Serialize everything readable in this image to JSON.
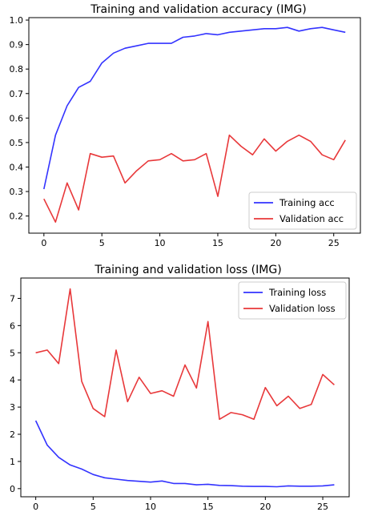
{
  "chart_data": [
    {
      "type": "line",
      "title": "Training and validation accuracy (IMG)",
      "xlabel": "",
      "ylabel": "",
      "x": [
        0,
        1,
        2,
        3,
        4,
        5,
        6,
        7,
        8,
        9,
        10,
        11,
        12,
        13,
        14,
        15,
        16,
        17,
        18,
        19,
        20,
        21,
        22,
        23,
        24,
        25,
        26
      ],
      "xlim": [
        -1.3,
        27.3
      ],
      "ylim": [
        0.13,
        1.01
      ],
      "xticks": [
        0,
        5,
        10,
        15,
        20,
        25
      ],
      "yticks": [
        0.2,
        0.3,
        0.4,
        0.5,
        0.6,
        0.7,
        0.8,
        0.9,
        1.0
      ],
      "ytick_labels": [
        "0.2",
        "0.3",
        "0.4",
        "0.5",
        "0.6",
        "0.7",
        "0.8",
        "0.9",
        "1.0"
      ],
      "grid": false,
      "legend_position": "lower-right",
      "series": [
        {
          "name": "Training acc",
          "color": "#3333ff",
          "values": [
            0.31,
            0.53,
            0.65,
            0.725,
            0.75,
            0.825,
            0.865,
            0.885,
            0.895,
            0.905,
            0.905,
            0.905,
            0.93,
            0.935,
            0.945,
            0.94,
            0.95,
            0.955,
            0.96,
            0.965,
            0.965,
            0.97,
            0.955,
            0.965,
            0.97,
            0.96,
            0.95
          ]
        },
        {
          "name": "Validation acc",
          "color": "#e8383a",
          "values": [
            0.27,
            0.175,
            0.335,
            0.225,
            0.455,
            0.44,
            0.445,
            0.335,
            0.385,
            0.425,
            0.43,
            0.455,
            0.425,
            0.43,
            0.455,
            0.28,
            0.53,
            0.485,
            0.45,
            0.515,
            0.465,
            0.505,
            0.53,
            0.505,
            0.45,
            0.43,
            0.51
          ]
        }
      ]
    },
    {
      "type": "line",
      "title": "Training and validation loss (IMG)",
      "xlabel": "",
      "ylabel": "",
      "x": [
        0,
        1,
        2,
        3,
        4,
        5,
        6,
        7,
        8,
        9,
        10,
        11,
        12,
        13,
        14,
        15,
        16,
        17,
        18,
        19,
        20,
        21,
        22,
        23,
        24,
        25,
        26
      ],
      "xlim": [
        -1.3,
        27.3
      ],
      "ylim": [
        -0.3,
        7.75
      ],
      "xticks": [
        0,
        5,
        10,
        15,
        20,
        25
      ],
      "yticks": [
        0,
        1,
        2,
        3,
        4,
        5,
        6,
        7
      ],
      "ytick_labels": [
        "0",
        "1",
        "2",
        "3",
        "4",
        "5",
        "6",
        "7"
      ],
      "grid": false,
      "legend_position": "upper-right",
      "series": [
        {
          "name": "Training loss",
          "color": "#3333ff",
          "values": [
            2.5,
            1.6,
            1.15,
            0.87,
            0.72,
            0.52,
            0.4,
            0.35,
            0.3,
            0.27,
            0.24,
            0.28,
            0.19,
            0.19,
            0.14,
            0.16,
            0.12,
            0.11,
            0.09,
            0.08,
            0.08,
            0.07,
            0.1,
            0.09,
            0.09,
            0.1,
            0.14
          ]
        },
        {
          "name": "Validation loss",
          "color": "#e8383a",
          "values": [
            5.0,
            5.1,
            4.6,
            7.35,
            3.95,
            2.95,
            2.65,
            5.1,
            3.2,
            4.1,
            3.5,
            3.6,
            3.4,
            4.55,
            3.7,
            6.15,
            2.55,
            2.8,
            2.72,
            2.55,
            3.72,
            3.05,
            3.4,
            2.95,
            3.1,
            4.2,
            3.82
          ]
        }
      ]
    }
  ]
}
